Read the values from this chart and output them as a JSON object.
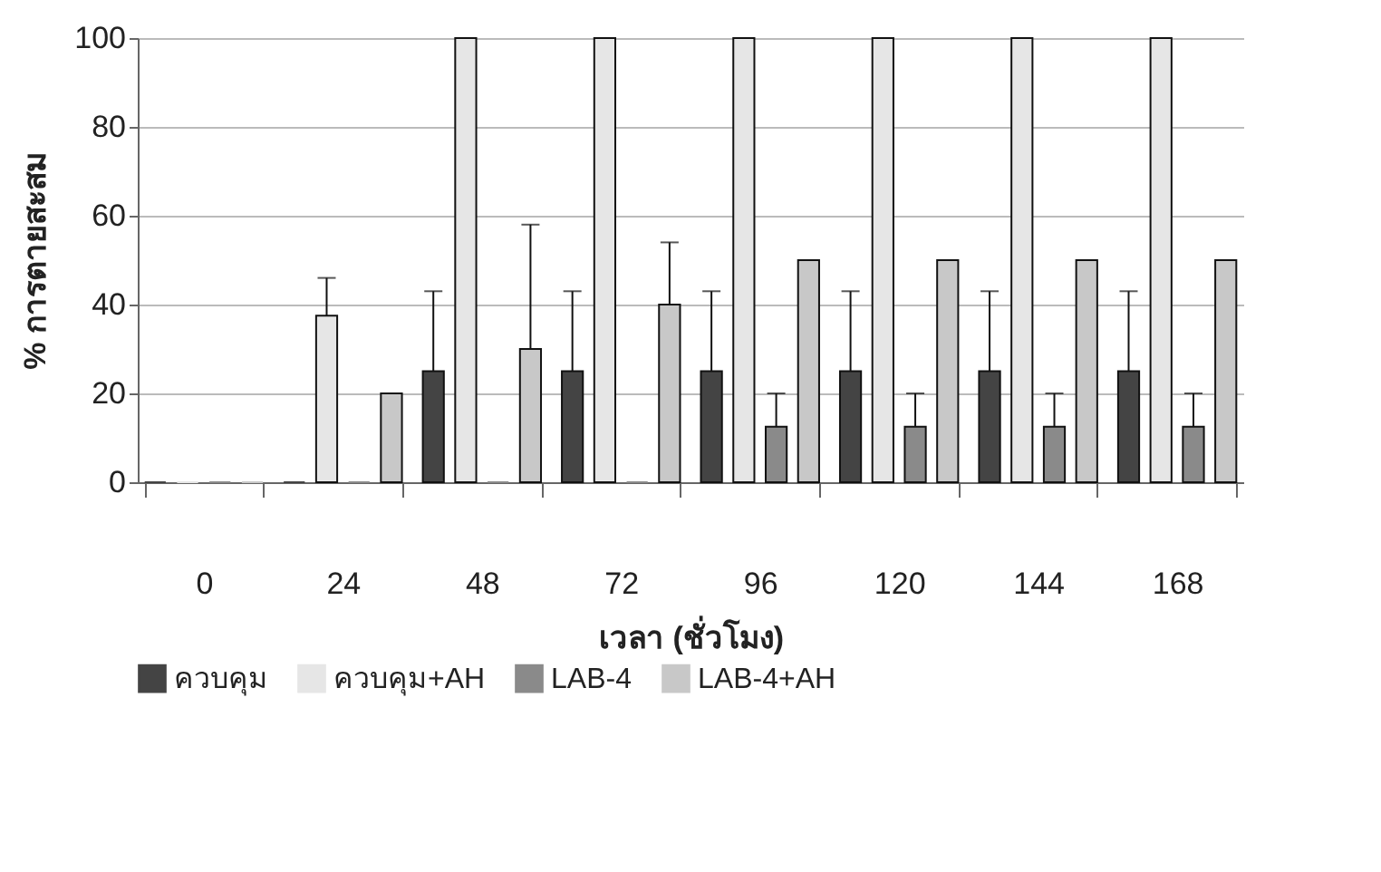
{
  "chart_data": {
    "type": "bar",
    "xlabel": "เวลา (ชั่วโมง)",
    "ylabel": "% การตายสะสม",
    "categories": [
      "0",
      "24",
      "48",
      "72",
      "96",
      "120",
      "144",
      "168"
    ],
    "series": [
      {
        "name": "ควบคุม",
        "color": "#444444",
        "values": [
          0,
          0,
          25,
          25,
          25,
          25,
          25,
          25
        ],
        "errors": [
          null,
          null,
          [
            25,
            43
          ],
          [
            25,
            43
          ],
          [
            25,
            43
          ],
          [
            25,
            43
          ],
          [
            25,
            43
          ],
          [
            25,
            43
          ]
        ]
      },
      {
        "name": "ควบคุม+AH",
        "color": "#e6e6e6",
        "values": [
          0,
          37.5,
          100,
          100,
          100,
          100,
          100,
          100
        ],
        "errors": [
          null,
          [
            37.5,
            46
          ],
          null,
          null,
          null,
          null,
          null,
          null
        ]
      },
      {
        "name": "LAB-4",
        "color": "#8a8a8a",
        "values": [
          0,
          0,
          0,
          0,
          12.5,
          12.5,
          12.5,
          12.5
        ],
        "errors": [
          null,
          null,
          null,
          null,
          [
            12.5,
            20
          ],
          [
            12.5,
            20
          ],
          [
            12.5,
            20
          ],
          [
            12.5,
            20
          ]
        ]
      },
      {
        "name": "LAB-4+AH",
        "color": "#c8c8c8",
        "values": [
          0,
          20,
          30,
          40,
          50,
          50,
          50,
          50
        ],
        "errors": [
          null,
          null,
          [
            30,
            58
          ],
          [
            40,
            54
          ],
          null,
          null,
          null,
          null
        ]
      }
    ],
    "ylim": [
      0,
      100
    ],
    "yticks": [
      0,
      20,
      40,
      60,
      80,
      100
    ],
    "grid": "y",
    "legend": "bottom"
  }
}
